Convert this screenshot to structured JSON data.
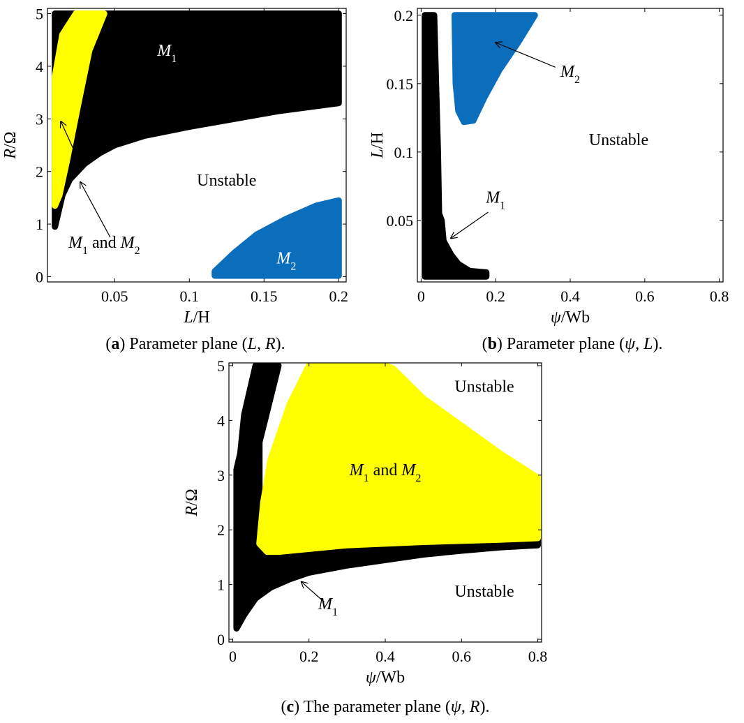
{
  "colors": {
    "m1": "#000000",
    "m2": "#0a6ebd",
    "both": "#ffff00",
    "background": "#ffffff"
  },
  "chart_data": [
    {
      "type": "scatter",
      "panel": "a",
      "caption": {
        "label": "a",
        "text": " Parameter plane (",
        "v1": "L",
        "sep": ", ",
        "v2": "R",
        "end": ")."
      },
      "xlabel": {
        "var": "L",
        "unit": "/H"
      },
      "ylabel": {
        "var": "R",
        "unit": "/Ω"
      },
      "xlim": [
        0.005,
        0.205
      ],
      "ylim": [
        -0.1,
        5.1
      ],
      "xticks": [
        "0.05",
        "0.1",
        "0.15",
        "0.2"
      ],
      "xtick_values": [
        0.05,
        0.1,
        0.15,
        0.2
      ],
      "yticks": [
        "0",
        "1",
        "2",
        "3",
        "4",
        "5"
      ],
      "ytick_values": [
        0,
        1,
        2,
        3,
        4,
        5
      ],
      "regions": [
        {
          "name": "M1",
          "color": "m1",
          "points": [
            [
              0.01,
              0.95
            ],
            [
              0.015,
              1.55
            ],
            [
              0.02,
              1.85
            ],
            [
              0.03,
              2.15
            ],
            [
              0.04,
              2.35
            ],
            [
              0.05,
              2.5
            ],
            [
              0.07,
              2.68
            ],
            [
              0.1,
              2.85
            ],
            [
              0.13,
              3.0
            ],
            [
              0.16,
              3.15
            ],
            [
              0.2,
              3.3
            ],
            [
              0.2,
              5.0
            ],
            [
              0.01,
              5.0
            ]
          ]
        },
        {
          "name": "M1 and M2",
          "color": "both",
          "points": [
            [
              0.01,
              1.35
            ],
            [
              0.013,
              1.55
            ],
            [
              0.018,
              2.2
            ],
            [
              0.025,
              3.2
            ],
            [
              0.033,
              4.3
            ],
            [
              0.043,
              5.0
            ],
            [
              0.024,
              5.0
            ],
            [
              0.015,
              4.6
            ],
            [
              0.01,
              3.8
            ]
          ]
        },
        {
          "name": "M2",
          "color": "m2",
          "points": [
            [
              0.117,
              0.02
            ],
            [
              0.2,
              0.02
            ],
            [
              0.2,
              1.45
            ],
            [
              0.185,
              1.35
            ],
            [
              0.165,
              1.1
            ],
            [
              0.145,
              0.8
            ],
            [
              0.13,
              0.45
            ],
            [
              0.117,
              0.1
            ]
          ]
        }
      ],
      "annotations": [
        {
          "parts": [
            [
              "M",
              true
            ],
            [
              "1",
              "sub"
            ]
          ],
          "x": 0.085,
          "y": 4.2,
          "color": "white"
        },
        {
          "parts": [
            [
              "Unstable",
              false
            ]
          ],
          "x": 0.125,
          "y": 1.73,
          "color": "black"
        },
        {
          "parts": [
            [
              "M",
              true
            ],
            [
              "1",
              "sub"
            ],
            [
              " and ",
              false
            ],
            [
              "M",
              true
            ],
            [
              "2",
              "sub"
            ]
          ],
          "x": 0.043,
          "y": 0.55,
          "color": "black"
        },
        {
          "parts": [
            [
              "M",
              true
            ],
            [
              "2",
              "sub"
            ]
          ],
          "x": 0.165,
          "y": 0.25,
          "color": "white"
        }
      ],
      "arrows": [
        {
          "from": [
            0.022,
            2.45
          ],
          "to": [
            0.014,
            2.95
          ]
        },
        {
          "from": [
            0.047,
            0.75
          ],
          "to": [
            0.027,
            1.8
          ]
        }
      ]
    },
    {
      "type": "scatter",
      "panel": "b",
      "caption": {
        "label": "b",
        "text": " Parameter plane (",
        "v1": "ψ",
        "sep": ", ",
        "v2": "L",
        "end": ")."
      },
      "xlabel": {
        "var": "ψ",
        "unit": "/Wb"
      },
      "ylabel": {
        "var": "L",
        "unit": "/H"
      },
      "xlim": [
        -0.01,
        0.81
      ],
      "ylim": [
        0.005,
        0.205
      ],
      "xticks": [
        "0",
        "0.2",
        "0.4",
        "0.6",
        "0.8"
      ],
      "xtick_values": [
        0,
        0.2,
        0.4,
        0.6,
        0.8
      ],
      "yticks": [
        "0.05",
        "0.1",
        "0.15",
        "0.2"
      ],
      "ytick_values": [
        0.05,
        0.1,
        0.15,
        0.2
      ],
      "regions": [
        {
          "name": "M1",
          "color": "m1",
          "points": [
            [
              0.01,
              0.2
            ],
            [
              0.035,
              0.2
            ],
            [
              0.045,
              0.1
            ],
            [
              0.048,
              0.055
            ],
            [
              0.055,
              0.05
            ],
            [
              0.06,
              0.035
            ],
            [
              0.08,
              0.025
            ],
            [
              0.1,
              0.018
            ],
            [
              0.13,
              0.013
            ],
            [
              0.175,
              0.012
            ],
            [
              0.175,
              0.009
            ],
            [
              0.01,
              0.009
            ]
          ]
        },
        {
          "name": "M2",
          "color": "m2",
          "points": [
            [
              0.09,
              0.2
            ],
            [
              0.305,
              0.2
            ],
            [
              0.26,
              0.18
            ],
            [
              0.21,
              0.16
            ],
            [
              0.17,
              0.14
            ],
            [
              0.14,
              0.123
            ],
            [
              0.115,
              0.122
            ],
            [
              0.1,
              0.13
            ],
            [
              0.093,
              0.15
            ]
          ]
        }
      ],
      "annotations": [
        {
          "parts": [
            [
              "M",
              true
            ],
            [
              "2",
              "sub"
            ]
          ],
          "x": 0.4,
          "y": 0.155,
          "color": "black"
        },
        {
          "parts": [
            [
              "Unstable",
              false
            ]
          ],
          "x": 0.53,
          "y": 0.105,
          "color": "black"
        },
        {
          "parts": [
            [
              "M",
              true
            ],
            [
              "1",
              "sub"
            ]
          ],
          "x": 0.2,
          "y": 0.063,
          "color": "black"
        }
      ],
      "arrows": [
        {
          "from": [
            0.36,
            0.162
          ],
          "to": [
            0.2,
            0.18
          ]
        },
        {
          "from": [
            0.18,
            0.056
          ],
          "to": [
            0.08,
            0.037
          ]
        }
      ]
    },
    {
      "type": "scatter",
      "panel": "c",
      "caption": {
        "label": "c",
        "text": " The parameter plane (",
        "v1": "ψ",
        "sep": ", ",
        "v2": "R",
        "end": ")."
      },
      "xlabel": {
        "var": "ψ",
        "unit": "/Wb"
      },
      "ylabel": {
        "var": "R",
        "unit": "/Ω"
      },
      "xlim": [
        -0.01,
        0.81
      ],
      "ylim": [
        -0.05,
        5.05
      ],
      "xticks": [
        "0",
        "0.2",
        "0.4",
        "0.6",
        "0.8"
      ],
      "xtick_values": [
        0,
        0.2,
        0.4,
        0.6,
        0.8
      ],
      "yticks": [
        "0",
        "1",
        "2",
        "3",
        "4",
        "5"
      ],
      "ytick_values": [
        0,
        1,
        2,
        3,
        4,
        5
      ],
      "regions": [
        {
          "name": "M1",
          "color": "m1",
          "points": [
            [
              0.01,
              0.2
            ],
            [
              0.03,
              0.45
            ],
            [
              0.06,
              0.75
            ],
            [
              0.1,
              0.95
            ],
            [
              0.15,
              1.1
            ],
            [
              0.2,
              1.22
            ],
            [
              0.3,
              1.35
            ],
            [
              0.4,
              1.45
            ],
            [
              0.5,
              1.55
            ],
            [
              0.6,
              1.62
            ],
            [
              0.7,
              1.68
            ],
            [
              0.8,
              1.72
            ],
            [
              0.8,
              1.9
            ],
            [
              0.1,
              1.9
            ],
            [
              0.07,
              1.9
            ],
            [
              0.07,
              3.6
            ],
            [
              0.12,
              5.0
            ],
            [
              0.06,
              5.0
            ],
            [
              0.03,
              4.1
            ],
            [
              0.02,
              3.4
            ],
            [
              0.01,
              3.1
            ]
          ]
        },
        {
          "name": "M1 and M2",
          "color": "both",
          "points": [
            [
              0.07,
              1.75
            ],
            [
              0.09,
              1.6
            ],
            [
              0.12,
              1.6
            ],
            [
              0.3,
              1.72
            ],
            [
              0.5,
              1.78
            ],
            [
              0.7,
              1.82
            ],
            [
              0.8,
              1.85
            ],
            [
              0.8,
              2.95
            ],
            [
              0.7,
              3.4
            ],
            [
              0.6,
              3.9
            ],
            [
              0.5,
              4.4
            ],
            [
              0.42,
              4.95
            ],
            [
              0.4,
              5.0
            ],
            [
              0.2,
              5.0
            ],
            [
              0.15,
              4.3
            ],
            [
              0.1,
              3.3
            ],
            [
              0.08,
              2.5
            ]
          ]
        }
      ],
      "annotations": [
        {
          "parts": [
            [
              "Unstable",
              false
            ]
          ],
          "x": 0.66,
          "y": 4.52,
          "color": "black"
        },
        {
          "parts": [
            [
              "M",
              true
            ],
            [
              "1",
              "sub"
            ],
            [
              " and ",
              false
            ],
            [
              "M",
              true
            ],
            [
              "2",
              "sub"
            ]
          ],
          "x": 0.4,
          "y": 3.0,
          "color": "black"
        },
        {
          "parts": [
            [
              "Unstable",
              false
            ]
          ],
          "x": 0.66,
          "y": 0.78,
          "color": "black"
        },
        {
          "parts": [
            [
              "M",
              true
            ],
            [
              "1",
              "sub"
            ]
          ],
          "x": 0.25,
          "y": 0.55,
          "color": "black"
        }
      ],
      "arrows": [
        {
          "from": [
            0.24,
            0.68
          ],
          "to": [
            0.18,
            1.05
          ]
        }
      ]
    }
  ]
}
